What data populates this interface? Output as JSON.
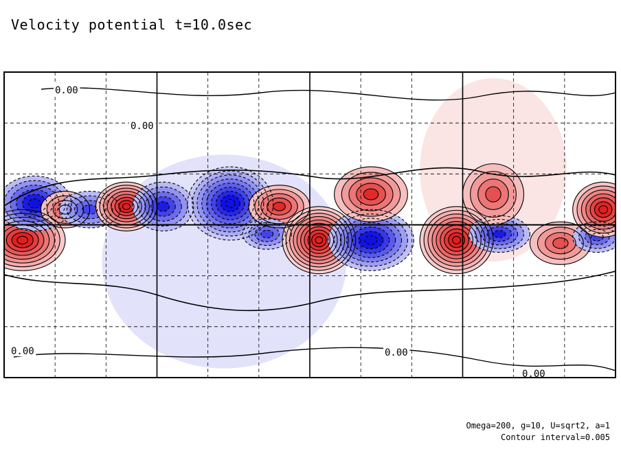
{
  "title": "Velocity potential t=10.0sec",
  "footer": {
    "params": "Omega=200, g=10, U=sqrt2, a=1",
    "contour_interval": "Contour interval=0.005"
  },
  "colors": {
    "positive": "#e02020",
    "negative": "#1010e0",
    "contour": "#000000",
    "background": "#ffffff"
  },
  "chart_data": {
    "type": "heatmap",
    "field": "velocity potential",
    "contour_interval": 0.005,
    "grid": true,
    "contour_labels": [
      "0.00",
      "0.00",
      "0.00",
      "0.00",
      "0.00"
    ],
    "cells": [
      {
        "name": "red1",
        "x": 0.03,
        "y": 0.05,
        "a": 0.07,
        "b": 0.1,
        "v": 0.04
      },
      {
        "name": "blue1",
        "x": 0.05,
        "y": -0.07,
        "a": 0.06,
        "b": 0.09,
        "v": -0.03
      },
      {
        "name": "red2",
        "x": 0.1,
        "y": -0.05,
        "a": 0.04,
        "b": 0.06,
        "v": 0.02
      },
      {
        "name": "blue2",
        "x": 0.14,
        "y": -0.05,
        "a": 0.05,
        "b": 0.06,
        "v": -0.02
      },
      {
        "name": "red3",
        "x": 0.2,
        "y": -0.06,
        "a": 0.05,
        "b": 0.08,
        "v": 0.04
      },
      {
        "name": "blue3",
        "x": 0.26,
        "y": -0.06,
        "a": 0.05,
        "b": 0.08,
        "v": -0.025
      },
      {
        "name": "blue4",
        "x": 0.37,
        "y": -0.07,
        "a": 0.07,
        "b": 0.12,
        "v": -0.045
      },
      {
        "name": "red4",
        "x": 0.45,
        "y": -0.06,
        "a": 0.05,
        "b": 0.07,
        "v": 0.025
      },
      {
        "name": "blue5",
        "x": 0.43,
        "y": 0.03,
        "a": 0.04,
        "b": 0.05,
        "v": -0.02
      },
      {
        "name": "red5",
        "x": 0.515,
        "y": 0.05,
        "a": 0.06,
        "b": 0.11,
        "v": 0.05
      },
      {
        "name": "blue6",
        "x": 0.6,
        "y": 0.05,
        "a": 0.07,
        "b": 0.1,
        "v": -0.035
      },
      {
        "name": "red6",
        "x": 0.6,
        "y": -0.1,
        "a": 0.06,
        "b": 0.09,
        "v": 0.025
      },
      {
        "name": "red7",
        "x": 0.74,
        "y": 0.05,
        "a": 0.06,
        "b": 0.11,
        "v": 0.045
      },
      {
        "name": "blue7",
        "x": 0.81,
        "y": 0.03,
        "a": 0.05,
        "b": 0.06,
        "v": -0.025
      },
      {
        "name": "red8",
        "x": 0.8,
        "y": -0.1,
        "a": 0.05,
        "b": 0.1,
        "v": 0.02
      },
      {
        "name": "red9",
        "x": 0.91,
        "y": 0.06,
        "a": 0.05,
        "b": 0.07,
        "v": 0.02
      },
      {
        "name": "blue8",
        "x": 0.97,
        "y": 0.04,
        "a": 0.04,
        "b": 0.05,
        "v": -0.02
      },
      {
        "name": "red10",
        "x": 0.98,
        "y": -0.05,
        "a": 0.05,
        "b": 0.09,
        "v": 0.035
      }
    ],
    "broad": [
      {
        "name": "blue-broad",
        "x": 0.36,
        "y": 0.12,
        "a": 0.2,
        "b": 0.35,
        "v": -0.008
      },
      {
        "name": "red-broad",
        "x": 0.8,
        "y": -0.18,
        "a": 0.12,
        "b": 0.3,
        "v": 0.006
      }
    ]
  }
}
